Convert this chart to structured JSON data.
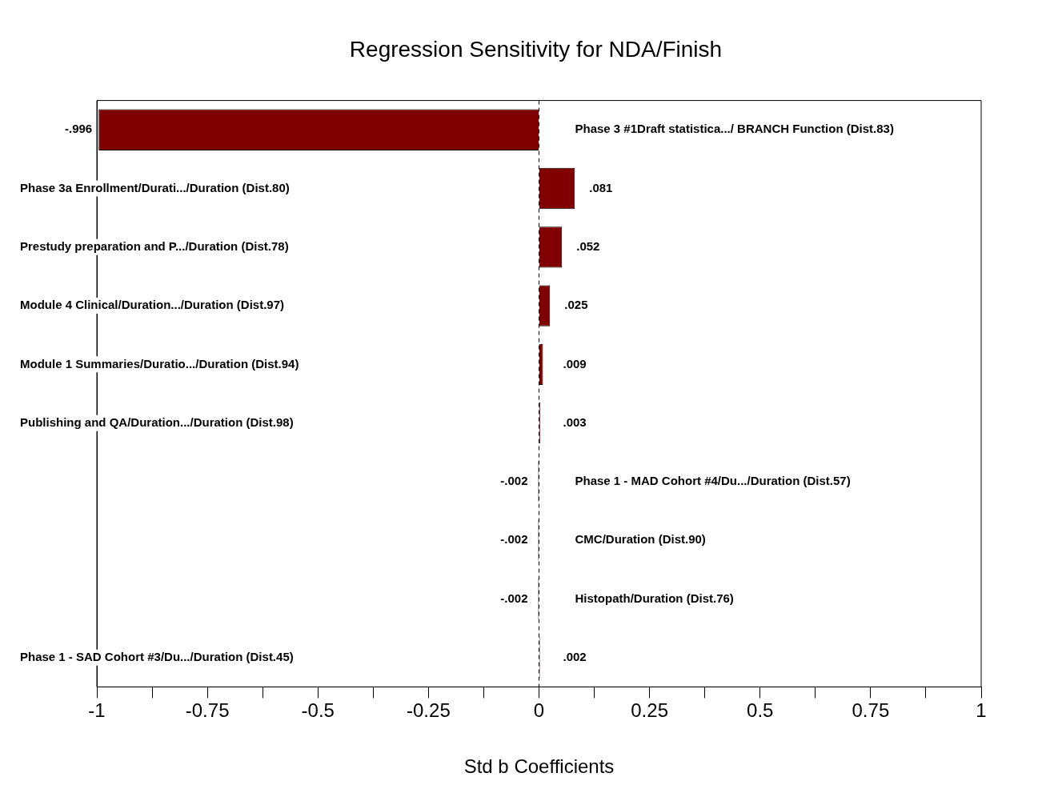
{
  "chart_data": {
    "type": "bar",
    "orientation": "horizontal",
    "title": "Regression Sensitivity for NDA/Finish",
    "xlabel": "Std b Coefficients",
    "categories": [
      "Phase 3 #1Draft statistica.../ BRANCH Function (Dist.83)",
      "Phase 3a Enrollment/Durati.../Duration (Dist.80)",
      "Prestudy preparation and P.../Duration (Dist.78)",
      "Module 4 Clinical/Duration.../Duration (Dist.97)",
      "Module 1 Summaries/Duratio.../Duration (Dist.94)",
      "Publishing and QA/Duration.../Duration (Dist.98)",
      "Phase 1 - MAD Cohort #4/Du.../Duration (Dist.57)",
      "CMC/Duration (Dist.90)",
      "Histopath/Duration (Dist.76)",
      "Phase 1 - SAD Cohort #3/Du.../Duration (Dist.45)"
    ],
    "values": [
      -0.996,
      0.081,
      0.052,
      0.025,
      0.009,
      0.003,
      -0.002,
      -0.002,
      -0.002,
      0.002
    ],
    "value_labels": [
      "-.996",
      ".081",
      ".052",
      ".025",
      ".009",
      ".003",
      "-.002",
      "-.002",
      "-.002",
      ".002"
    ],
    "color": "#800000",
    "xlim": [
      -1,
      1
    ],
    "xticks": [
      -1,
      {
        "value": -0.875,
        "label": null
      },
      -0.75,
      {
        "value": -0.625,
        "label": null
      },
      -0.5,
      {
        "value": -0.375,
        "label": null
      },
      -0.25,
      {
        "value": -0.125,
        "label": null
      },
      0,
      {
        "value": 0.125,
        "label": null
      },
      0.25,
      {
        "value": 0.375,
        "label": null
      },
      0.5,
      {
        "value": 0.625,
        "label": null
      },
      0.75,
      {
        "value": 0.875,
        "label": null
      },
      1
    ],
    "ref_lines": [
      {
        "axis": "x",
        "value": 0,
        "line_style": "dashed",
        "color": "#000000"
      }
    ],
    "grid": false,
    "legend": false
  }
}
